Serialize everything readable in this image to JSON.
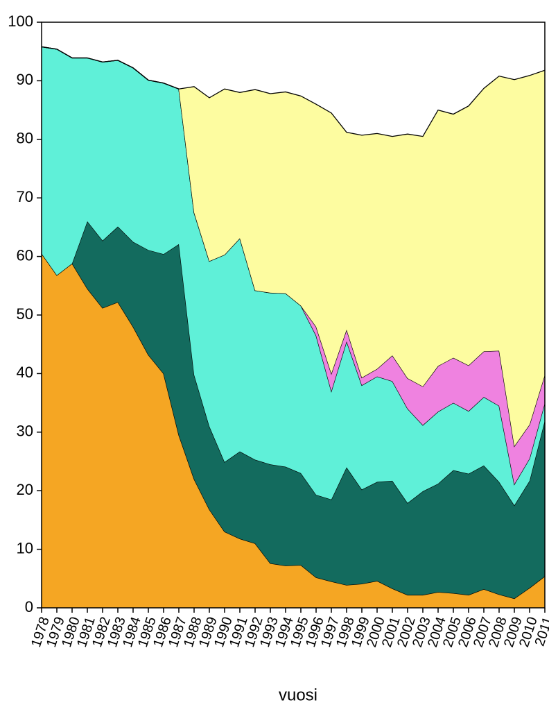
{
  "chart_data": {
    "type": "stacked_area",
    "x": [
      1978,
      1979,
      1980,
      1981,
      1982,
      1983,
      1984,
      1985,
      1986,
      1987,
      1988,
      1989,
      1990,
      1991,
      1992,
      1993,
      1994,
      1995,
      1996,
      1997,
      1998,
      1999,
      2000,
      2001,
      2002,
      2003,
      2004,
      2005,
      2006,
      2007,
      2008,
      2009,
      2010,
      2011
    ],
    "xlim": [
      1978,
      2011
    ],
    "xticks": [
      1978,
      1979,
      1980,
      1981,
      1982,
      1983,
      1984,
      1985,
      1986,
      1987,
      1988,
      1989,
      1990,
      1991,
      1992,
      1993,
      1994,
      1995,
      1996,
      1997,
      1998,
      1999,
      2000,
      2001,
      2002,
      2003,
      2004,
      2005,
      2006,
      2007,
      2008,
      2009,
      2010,
      2011
    ],
    "ylim": [
      0,
      100
    ],
    "yticks": [
      0,
      10,
      20,
      30,
      40,
      50,
      60,
      70,
      80,
      90,
      100
    ],
    "xlabel": "vuosi",
    "series": [
      {
        "color": "#f5a623",
        "values": [
          60.5,
          56.8,
          58.8,
          54.5,
          51.2,
          52.2,
          48,
          43.2,
          40,
          29.5,
          22,
          16.8,
          13,
          11.8,
          11,
          7.6,
          7.2,
          7.3,
          5.2,
          4.5,
          3.9,
          4.1,
          4.6,
          3.3,
          2.2,
          2.2,
          2.7,
          2.5,
          2.2,
          3.2,
          2.3,
          1.6,
          3.4,
          5.4
        ]
      },
      {
        "color": "#136b5e",
        "values": [
          0,
          0,
          0,
          11.5,
          11.5,
          12.9,
          14.5,
          17.9,
          20.4,
          32.6,
          17.8,
          14.2,
          11.9,
          14.9,
          14.3,
          16.9,
          16.9,
          15.7,
          14.1,
          14,
          20.1,
          16.1,
          16.9,
          18.4,
          15.7,
          17.7,
          18.5,
          21,
          20.7,
          21.1,
          19.2,
          15.9,
          18.3,
          26.6
        ]
      },
      {
        "color": "#5ff0d8",
        "values": [
          35.3,
          38.6,
          35.1,
          27.9,
          30.5,
          28.4,
          29.7,
          29,
          29.2,
          26.5,
          27.7,
          28.2,
          35.4,
          36.4,
          28.9,
          29.3,
          29.6,
          28.6,
          27.2,
          18.5,
          21.5,
          17.8,
          18,
          17,
          16.1,
          11.3,
          12.3,
          11.5,
          10.7,
          11.7,
          13,
          3.6,
          3.8,
          3
        ]
      },
      {
        "color": "#ef82e0",
        "values": [
          0,
          0,
          0,
          0,
          0,
          0,
          0,
          0,
          0,
          0,
          0,
          0,
          0,
          0,
          0,
          0,
          0,
          0,
          1.5,
          3,
          2,
          1.3,
          1.3,
          4.4,
          5.2,
          6.6,
          7.8,
          7.7,
          7.8,
          7.8,
          9.4,
          6.5,
          5.8,
          4.8
        ]
      },
      {
        "color": "#fdfca0",
        "values": [
          0,
          0,
          0,
          0,
          0,
          0,
          0,
          0,
          0,
          0,
          21.5,
          27.9,
          28.3,
          24.9,
          34.3,
          34,
          34.4,
          35.8,
          38,
          44.5,
          33.7,
          41.4,
          40.2,
          37.4,
          41.7,
          42.7,
          43.7,
          41.6,
          44.3,
          44.9,
          46.9,
          62.6,
          59.6,
          52
        ]
      }
    ]
  }
}
